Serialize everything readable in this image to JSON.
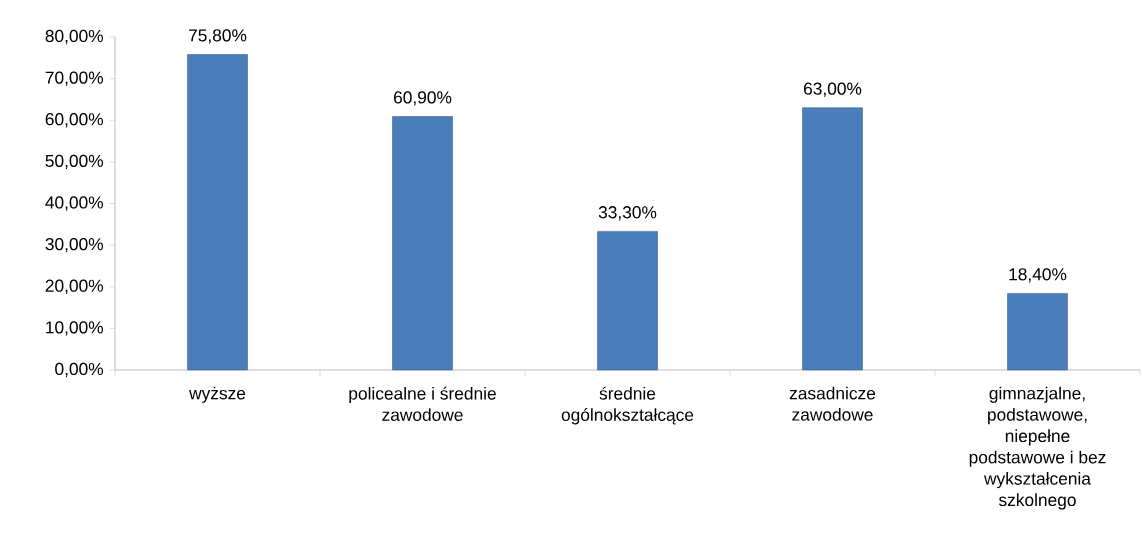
{
  "chart_data": {
    "type": "bar",
    "categories": [
      "wyższe",
      "policealne i średnie zawodowe",
      "średnie ogólnokształcące",
      "zasadnicze zawodowe",
      "gimnazjalne, podstawowe, niepełne podstawowe i bez wykształcenia szkolnego"
    ],
    "values": [
      75.8,
      60.9,
      33.3,
      63.0,
      18.4
    ],
    "value_labels": [
      "75,80%",
      "60,90%",
      "33,30%",
      "63,00%",
      "18,40%"
    ],
    "color": "#4a7ebb",
    "ylim": [
      0,
      80
    ],
    "yticks": [
      {
        "value": 0,
        "label": "0,00%"
      },
      {
        "value": 10,
        "label": "10,00%"
      },
      {
        "value": 20,
        "label": "20,00%"
      },
      {
        "value": 30,
        "label": "30,00%"
      },
      {
        "value": 40,
        "label": "40,00%"
      },
      {
        "value": 50,
        "label": "50,00%"
      },
      {
        "value": 60,
        "label": "60,00%"
      },
      {
        "value": 70,
        "label": "70,00%"
      },
      {
        "value": 80,
        "label": "80,00%"
      }
    ],
    "grid": false
  }
}
